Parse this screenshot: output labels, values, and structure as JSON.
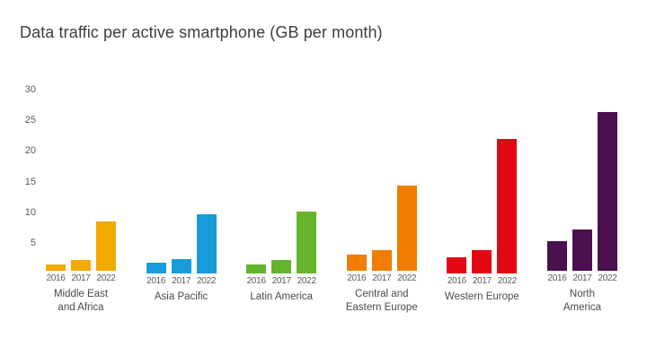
{
  "title": "Data traffic per active smartphone (GB per month)",
  "chart_data": {
    "type": "bar",
    "title": "Data traffic per active smartphone (GB per month)",
    "xlabel": "",
    "ylabel": "GB per month",
    "ylim": [
      0,
      30
    ],
    "yticks": [
      5,
      10,
      15,
      20,
      25,
      30
    ],
    "grid": false,
    "legend": "none",
    "years": [
      "2016",
      "2017",
      "2022"
    ],
    "groups": [
      {
        "label_lines": [
          "Middle East",
          "and Africa"
        ],
        "color": "#F2A900",
        "values": [
          1.0,
          1.7,
          8.0
        ]
      },
      {
        "label_lines": [
          "Asia Pacific"
        ],
        "color": "#189CD9",
        "values": [
          1.7,
          2.3,
          9.6
        ]
      },
      {
        "label_lines": [
          "Latin America"
        ],
        "color": "#64B42D",
        "values": [
          1.5,
          2.2,
          10.1
        ]
      },
      {
        "label_lines": [
          "Central and",
          "Eastern Europe"
        ],
        "color": "#F07D00",
        "values": [
          2.6,
          3.4,
          13.9
        ]
      },
      {
        "label_lines": [
          "Western Europe"
        ],
        "color": "#E30613",
        "values": [
          2.7,
          3.8,
          21.9
        ]
      },
      {
        "label_lines": [
          "North",
          "America"
        ],
        "color": "#4A1050",
        "values": [
          4.9,
          6.8,
          25.9
        ]
      }
    ]
  }
}
